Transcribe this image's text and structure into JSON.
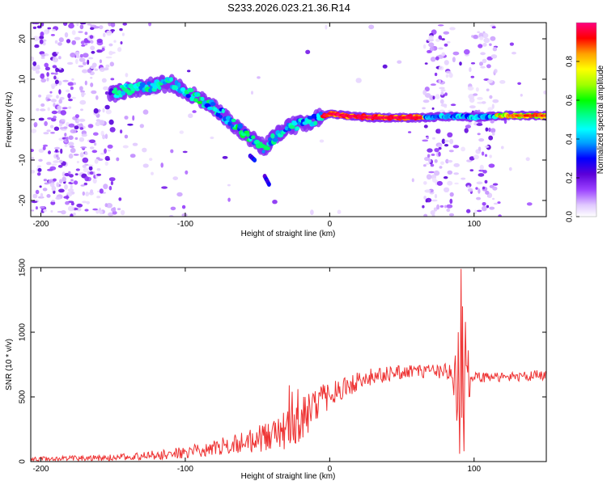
{
  "title": "S233.2026.023.21.36.R14",
  "chart_data": [
    {
      "type": "heatmap",
      "xlabel": "Height of straight line (km)",
      "ylabel": "Frequency (Hz)",
      "xlim": [
        -207,
        150
      ],
      "ylim": [
        -24,
        24
      ],
      "xticks": [
        -200,
        -100,
        0,
        100
      ],
      "yticks": [
        -20,
        -10,
        0,
        10,
        20
      ],
      "ridge": {
        "x": [
          -150,
          -140,
          -130,
          -120,
          -110,
          -100,
          -90,
          -80,
          -70,
          -60,
          -50,
          -45,
          -40,
          -30,
          -20,
          -10,
          0,
          10,
          30,
          50,
          65,
          80,
          100,
          120,
          150
        ],
        "y": [
          6.5,
          7.5,
          8,
          8.5,
          9,
          7,
          5,
          3,
          0,
          -3,
          -6,
          -7,
          -5,
          -2,
          -1,
          0,
          1.5,
          1,
          0.5,
          0.5,
          0.5,
          0.8,
          0.6,
          1,
          1
        ]
      },
      "branches": [
        {
          "x": [
            -55,
            -52
          ],
          "y": [
            -9,
            -10
          ]
        },
        {
          "x": [
            -45,
            -42
          ],
          "y": [
            -14,
            -16
          ]
        }
      ],
      "colorbar": {
        "label": "Normalized spectral amplitude",
        "range": [
          0,
          1
        ],
        "ticks": [
          "0.0",
          "0.2",
          "0.4",
          "0.6",
          "0.8"
        ],
        "colors": [
          "#ffffff",
          "#e0c8ff",
          "#9a40ff",
          "#5b00d8",
          "#0000ff",
          "#00a0ff",
          "#00ffff",
          "#00ff80",
          "#00ff00",
          "#a0ff00",
          "#ffff00",
          "#ffa000",
          "#ff0000",
          "#ff0080"
        ]
      }
    },
    {
      "type": "line",
      "xlabel": "Height of straight line (km)",
      "ylabel": "SNR (10 * v/v)",
      "xlim": [
        -207,
        150
      ],
      "ylim": [
        0,
        1500
      ],
      "xticks": [
        -200,
        -100,
        0,
        100
      ],
      "yticks": [
        0,
        500,
        1000,
        1500
      ],
      "color": "#ee3333",
      "envelope": {
        "x": [
          -207,
          -150,
          -120,
          -100,
          -80,
          -60,
          -40,
          -30,
          -20,
          -10,
          0,
          10,
          20,
          30,
          50,
          70,
          85,
          88,
          92,
          95,
          98,
          100,
          120,
          150
        ],
        "y": [
          20,
          30,
          50,
          70,
          110,
          150,
          200,
          250,
          330,
          420,
          510,
          580,
          620,
          660,
          690,
          700,
          700,
          500,
          700,
          700,
          650,
          650,
          650,
          670
        ]
      },
      "noise": {
        "x": [
          -207,
          -150,
          -100,
          -60,
          -40,
          -20,
          0,
          20,
          60,
          85,
          88,
          92,
          95,
          100,
          150
        ],
        "amplitude": [
          15,
          25,
          45,
          80,
          130,
          170,
          120,
          70,
          50,
          60,
          300,
          400,
          280,
          40,
          40
        ]
      },
      "peaks": [
        {
          "x": -28,
          "y": 590
        },
        {
          "x": -27,
          "y": 170
        },
        {
          "x": -26,
          "y": 540
        },
        {
          "x": -22,
          "y": 560
        },
        {
          "x": -18,
          "y": 500
        },
        {
          "x": 87,
          "y": 820
        },
        {
          "x": 89,
          "y": 1000
        },
        {
          "x": 90,
          "y": 60
        },
        {
          "x": 91,
          "y": 1490
        },
        {
          "x": 92,
          "y": 1200
        },
        {
          "x": 93,
          "y": 80
        },
        {
          "x": 94,
          "y": 1080
        },
        {
          "x": 96,
          "y": 860
        }
      ]
    }
  ]
}
